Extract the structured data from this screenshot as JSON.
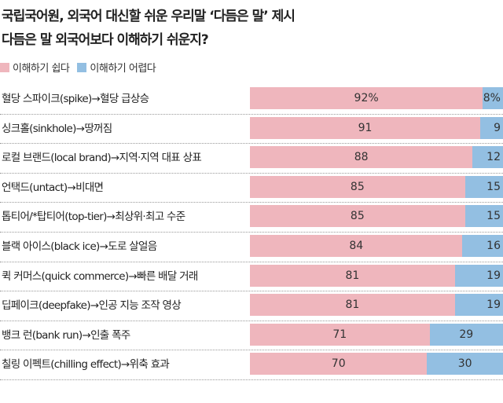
{
  "chart_data": {
    "type": "bar",
    "orientation": "horizontal",
    "stacked": true,
    "title": "국립국어원, 외국어 대신할 쉬운 우리말 ‘다듬은 말’ 제시",
    "subtitle": "다듬은 말 외국어보다 이해하기 쉬운지?",
    "legend_position": "top-left",
    "unit_suffix": "%",
    "xlim": [
      0,
      100
    ],
    "grid": false,
    "categories": [
      "혈당 스파이크(spike)→혈당 급상승",
      "싱크홀(sinkhole)→땅꺼짐",
      "로컬 브랜드(local brand)→지역·지역 대표 상표",
      "언택드(untact)→비대면",
      "톱티어/*탑티어(top-tier)→최상위·최고 수준",
      "블랙 아이스(black ice)→도로 살얼음",
      "퀵 커머스(quick commerce)→빠른 배달 거래",
      "딥페이크(deepfake)→인공 지능 조작 영상",
      "뱅크 런(bank run)→인출 폭주",
      "칠링 이펙트(chilling effect)→위축 효과"
    ],
    "series": [
      {
        "name": "이해하기 쉽다",
        "color": "#efb6bd",
        "values": [
          92,
          91,
          88,
          85,
          85,
          84,
          81,
          81,
          71,
          70
        ]
      },
      {
        "name": "이해하기 어렵다",
        "color": "#93bfe2",
        "values": [
          8,
          9,
          12,
          15,
          15,
          16,
          19,
          19,
          29,
          30
        ]
      }
    ]
  }
}
